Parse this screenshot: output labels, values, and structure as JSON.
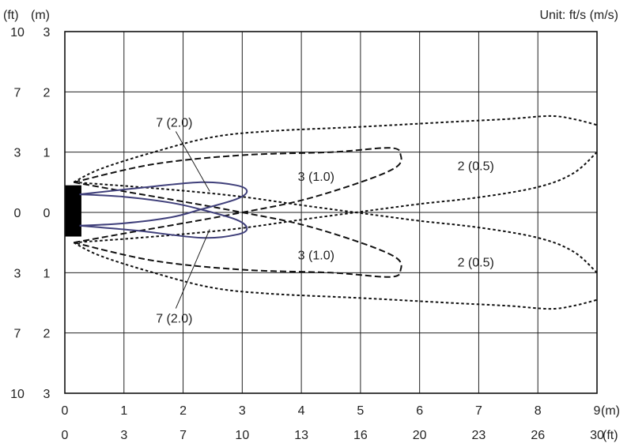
{
  "chart_data": {
    "type": "line",
    "unit_label": "Unit: ft/s (m/s)",
    "y_unit_ft": "(ft)",
    "y_unit_m": "(m)",
    "x_unit_m": "(m)",
    "x_unit_ft": "(ft)",
    "x_ticks_m": [
      "0",
      "1",
      "2",
      "3",
      "4",
      "5",
      "6",
      "7",
      "8",
      "9"
    ],
    "x_ticks_ft": [
      "0",
      "3",
      "7",
      "10",
      "13",
      "16",
      "20",
      "23",
      "26",
      "30"
    ],
    "y_ticks": [
      {
        "y": 3,
        "ft": "10",
        "m": "3"
      },
      {
        "y": 2,
        "ft": "7",
        "m": "2"
      },
      {
        "y": 1,
        "ft": "3",
        "m": "1"
      },
      {
        "y": 0,
        "ft": "0",
        "m": "0"
      },
      {
        "y": -1,
        "ft": "3",
        "m": "1"
      },
      {
        "y": -2,
        "ft": "7",
        "m": "2"
      },
      {
        "y": -3,
        "ft": "10",
        "m": "3"
      }
    ],
    "xlim": [
      0,
      9
    ],
    "ylim": [
      -3,
      3
    ],
    "grid": true,
    "outlet": {
      "x0": 0,
      "x1": 0.28,
      "y0": -0.4,
      "y1": 0.45
    },
    "colors": {
      "inner": "#3f3f7a",
      "dashed": "#111111",
      "outlet": "#000000"
    },
    "series": [
      {
        "label": "2 (0.5)",
        "style": "dotted",
        "points": [
          [
            0.15,
            0.5
          ],
          [
            0.6,
            0.72
          ],
          [
            1.5,
            1.0
          ],
          [
            2.5,
            1.25
          ],
          [
            3.5,
            1.35
          ],
          [
            5,
            1.42
          ],
          [
            6.5,
            1.5
          ],
          [
            7.5,
            1.55
          ],
          [
            8.2,
            1.6
          ],
          [
            8.6,
            1.55
          ],
          [
            9,
            1.45
          ]
        ],
        "points_lower": [
          [
            9,
            1.0
          ],
          [
            8.6,
            0.65
          ],
          [
            8,
            0.42
          ],
          [
            7,
            0.25
          ],
          [
            6,
            0.14
          ],
          [
            5,
            0.01
          ],
          [
            4,
            -0.12
          ],
          [
            3,
            -0.26
          ],
          [
            2,
            -0.36
          ],
          [
            1,
            -0.44
          ],
          [
            0.15,
            -0.5
          ]
        ]
      },
      {
        "label": "2 (0.5)",
        "style": "dotted",
        "points": [
          [
            0.15,
            -0.5
          ],
          [
            0.6,
            -0.72
          ],
          [
            1.5,
            -1.0
          ],
          [
            2.5,
            -1.25
          ],
          [
            3.5,
            -1.35
          ],
          [
            5,
            -1.42
          ],
          [
            6.5,
            -1.5
          ],
          [
            7.5,
            -1.55
          ],
          [
            8.2,
            -1.6
          ],
          [
            8.6,
            -1.55
          ],
          [
            9,
            -1.45
          ]
        ],
        "points_lower": [
          [
            9,
            -1.0
          ],
          [
            8.6,
            -0.65
          ],
          [
            8,
            -0.42
          ],
          [
            7,
            -0.25
          ],
          [
            6,
            -0.14
          ],
          [
            5,
            -0.01
          ],
          [
            4,
            0.12
          ],
          [
            3,
            0.26
          ],
          [
            2,
            0.36
          ],
          [
            1,
            0.44
          ],
          [
            0.15,
            0.5
          ]
        ]
      },
      {
        "label": "3 (1.0)",
        "style": "dashed",
        "points": [
          [
            0.15,
            0.5
          ],
          [
            1.5,
            0.8
          ],
          [
            3,
            0.95
          ],
          [
            4.5,
            1.0
          ],
          [
            5.5,
            1.07
          ],
          [
            5.68,
            0.95
          ],
          [
            5.6,
            0.75
          ],
          [
            5,
            0.5
          ],
          [
            4,
            0.2
          ],
          [
            3,
            0.0
          ],
          [
            2,
            -0.18
          ],
          [
            1,
            -0.35
          ],
          [
            0.15,
            -0.5
          ]
        ]
      },
      {
        "label": "3 (1.0)",
        "style": "dashed",
        "points": [
          [
            0.15,
            -0.5
          ],
          [
            1.5,
            -0.8
          ],
          [
            3,
            -0.95
          ],
          [
            4.5,
            -1.0
          ],
          [
            5.5,
            -1.07
          ],
          [
            5.68,
            -0.95
          ],
          [
            5.6,
            -0.75
          ],
          [
            5,
            -0.5
          ],
          [
            4,
            -0.2
          ],
          [
            3,
            0.0
          ],
          [
            2,
            0.18
          ],
          [
            1,
            0.35
          ],
          [
            0.15,
            0.5
          ]
        ]
      },
      {
        "label": "7 (2.0)",
        "style": "solid",
        "points": [
          [
            0.25,
            0.3
          ],
          [
            1.2,
            0.4
          ],
          [
            2.3,
            0.5
          ],
          [
            2.9,
            0.45
          ],
          [
            3.08,
            0.35
          ],
          [
            2.9,
            0.22
          ],
          [
            2.3,
            0.05
          ],
          [
            1.8,
            -0.08
          ],
          [
            1,
            -0.18
          ],
          [
            0.25,
            -0.22
          ]
        ]
      },
      {
        "label": "7 (2.0)",
        "style": "solid",
        "points": [
          [
            0.25,
            -0.22
          ],
          [
            1.2,
            -0.3
          ],
          [
            2.3,
            -0.42
          ],
          [
            2.9,
            -0.37
          ],
          [
            3.08,
            -0.27
          ],
          [
            2.9,
            -0.12
          ],
          [
            2.3,
            0.05
          ],
          [
            1.8,
            0.16
          ],
          [
            1,
            0.26
          ],
          [
            0.25,
            0.3
          ]
        ]
      }
    ],
    "annotations": [
      {
        "text": "7 (2.0)",
        "x": 1.85,
        "y": 1.5,
        "leader_to": [
          2.45,
          0.35
        ]
      },
      {
        "text": "3 (1.0)",
        "x": 4.25,
        "y": 0.6
      },
      {
        "text": "2 (0.5)",
        "x": 6.95,
        "y": 0.78
      },
      {
        "text": "3 (1.0)",
        "x": 4.25,
        "y": -0.7
      },
      {
        "text": "2 (0.5)",
        "x": 6.95,
        "y": -0.82
      },
      {
        "text": "7 (2.0)",
        "x": 1.85,
        "y": -1.75,
        "leader_to": [
          2.45,
          -0.28
        ]
      }
    ]
  }
}
